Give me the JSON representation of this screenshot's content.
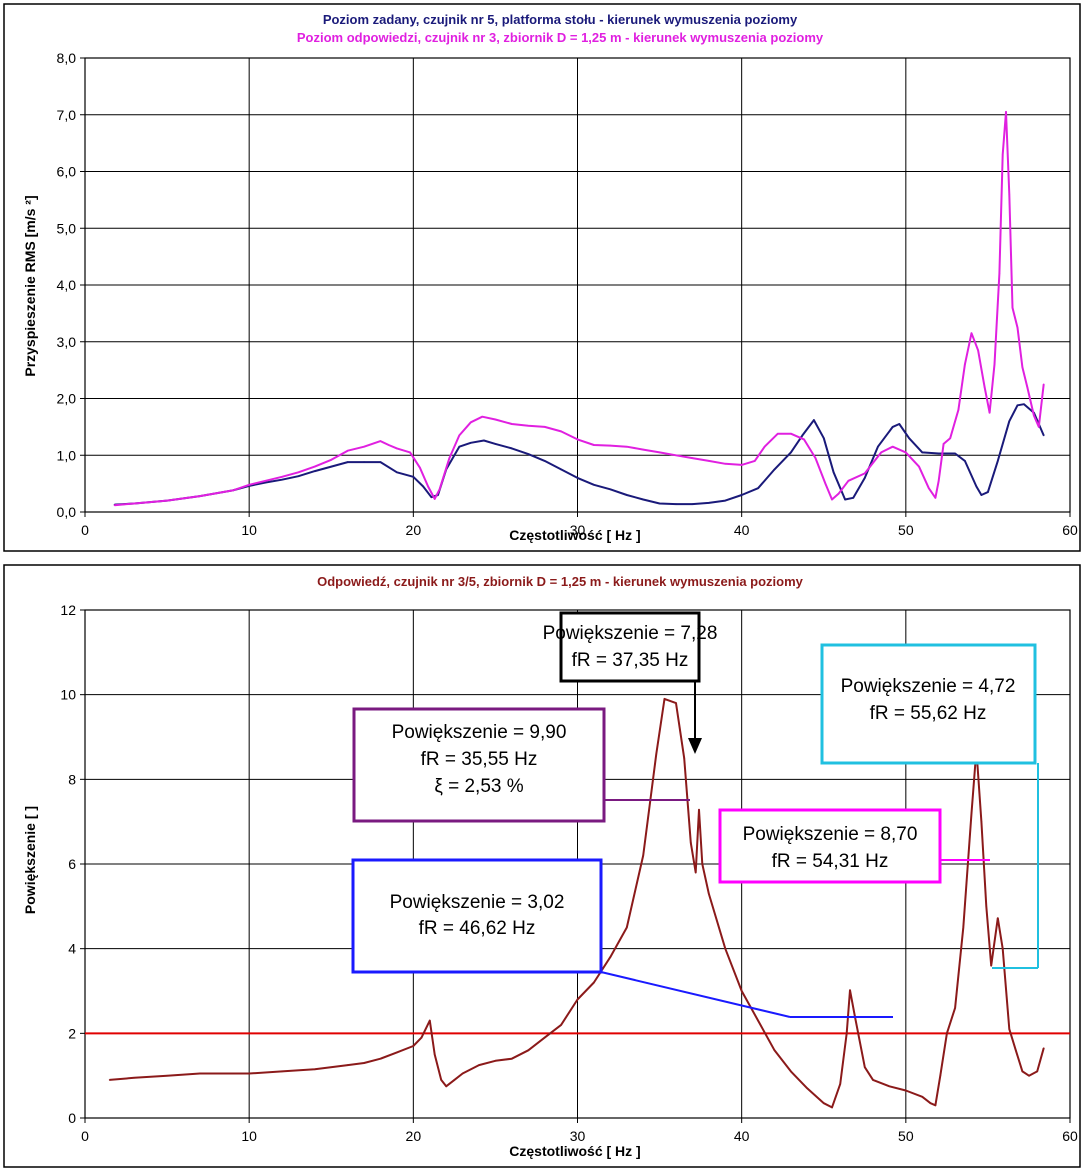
{
  "chart_data": [
    {
      "type": "line",
      "titles": [
        {
          "text": "Poziom zadany, czujnik nr 5, platforma stołu - kierunek wymuszenia poziomy",
          "color": "#1a1a7a"
        },
        {
          "text": "Poziom odpowiedzi, czujnik nr 3, zbiornik D = 1,25 m - kierunek wymuszenia poziomy",
          "color": "#e020e0"
        }
      ],
      "xlabel": "Częstotliwość [ Hz ]",
      "ylabel": "Przyspieszenie RMS [m/s  ²]",
      "xlim": [
        0,
        60
      ],
      "ylim": [
        0,
        8
      ],
      "x_ticks": [
        "0",
        "10",
        "20",
        "30",
        "40",
        "50",
        "60"
      ],
      "y_ticks": [
        "0,0",
        "1,0",
        "2,0",
        "3,0",
        "4,0",
        "5,0",
        "6,0",
        "7,0",
        "8,0"
      ],
      "grid": true,
      "series": [
        {
          "color": "#1a1a7a",
          "points": [
            [
              1.8,
              0.13
            ],
            [
              3,
              0.15
            ],
            [
              5,
              0.2
            ],
            [
              7,
              0.28
            ],
            [
              9,
              0.38
            ],
            [
              10,
              0.46
            ],
            [
              11,
              0.52
            ],
            [
              12,
              0.57
            ],
            [
              13,
              0.63
            ],
            [
              14,
              0.72
            ],
            [
              15,
              0.8
            ],
            [
              16,
              0.88
            ],
            [
              17,
              0.88
            ],
            [
              18,
              0.88
            ],
            [
              19,
              0.7
            ],
            [
              20,
              0.62
            ],
            [
              20.6,
              0.45
            ],
            [
              21.1,
              0.26
            ],
            [
              21.5,
              0.3
            ],
            [
              22,
              0.75
            ],
            [
              22.8,
              1.15
            ],
            [
              23.5,
              1.22
            ],
            [
              24.3,
              1.26
            ],
            [
              25,
              1.2
            ],
            [
              26,
              1.12
            ],
            [
              27,
              1.02
            ],
            [
              28,
              0.9
            ],
            [
              29,
              0.75
            ],
            [
              30,
              0.6
            ],
            [
              31,
              0.48
            ],
            [
              32,
              0.4
            ],
            [
              33,
              0.3
            ],
            [
              34,
              0.22
            ],
            [
              35,
              0.15
            ],
            [
              36,
              0.14
            ],
            [
              37,
              0.14
            ],
            [
              38,
              0.16
            ],
            [
              39,
              0.2
            ],
            [
              40,
              0.3
            ],
            [
              41,
              0.42
            ],
            [
              42,
              0.75
            ],
            [
              43,
              1.05
            ],
            [
              43.7,
              1.35
            ],
            [
              44.4,
              1.62
            ],
            [
              45,
              1.3
            ],
            [
              45.6,
              0.7
            ],
            [
              46.3,
              0.22
            ],
            [
              46.8,
              0.25
            ],
            [
              47.5,
              0.6
            ],
            [
              48.3,
              1.15
            ],
            [
              49.2,
              1.5
            ],
            [
              49.6,
              1.55
            ],
            [
              50.2,
              1.3
            ],
            [
              51,
              1.05
            ],
            [
              52,
              1.03
            ],
            [
              53,
              1.03
            ],
            [
              53.6,
              0.9
            ],
            [
              54.3,
              0.45
            ],
            [
              54.6,
              0.3
            ],
            [
              55,
              0.35
            ],
            [
              55.6,
              0.9
            ],
            [
              56.3,
              1.6
            ],
            [
              56.8,
              1.88
            ],
            [
              57.2,
              1.9
            ],
            [
              57.8,
              1.75
            ],
            [
              58.4,
              1.35
            ]
          ]
        },
        {
          "color": "#e020e0",
          "points": [
            [
              1.8,
              0.12
            ],
            [
              3,
              0.15
            ],
            [
              5,
              0.2
            ],
            [
              7,
              0.28
            ],
            [
              9,
              0.38
            ],
            [
              10,
              0.48
            ],
            [
              11,
              0.55
            ],
            [
              12,
              0.62
            ],
            [
              13,
              0.7
            ],
            [
              14,
              0.8
            ],
            [
              15,
              0.92
            ],
            [
              16,
              1.08
            ],
            [
              17,
              1.15
            ],
            [
              18,
              1.25
            ],
            [
              18.5,
              1.18
            ],
            [
              19,
              1.12
            ],
            [
              19.8,
              1.05
            ],
            [
              20.4,
              0.78
            ],
            [
              20.9,
              0.45
            ],
            [
              21.3,
              0.23
            ],
            [
              21.6,
              0.4
            ],
            [
              22.2,
              0.95
            ],
            [
              22.8,
              1.35
            ],
            [
              23.5,
              1.58
            ],
            [
              24.2,
              1.68
            ],
            [
              25,
              1.63
            ],
            [
              26,
              1.55
            ],
            [
              27,
              1.52
            ],
            [
              28,
              1.5
            ],
            [
              29,
              1.42
            ],
            [
              30,
              1.28
            ],
            [
              31,
              1.18
            ],
            [
              32,
              1.17
            ],
            [
              33,
              1.15
            ],
            [
              34,
              1.1
            ],
            [
              35,
              1.05
            ],
            [
              36,
              1.0
            ],
            [
              37,
              0.95
            ],
            [
              38,
              0.9
            ],
            [
              39,
              0.85
            ],
            [
              40,
              0.83
            ],
            [
              40.8,
              0.9
            ],
            [
              41.4,
              1.15
            ],
            [
              42.2,
              1.38
            ],
            [
              43,
              1.38
            ],
            [
              43.8,
              1.28
            ],
            [
              44.5,
              0.95
            ],
            [
              45.1,
              0.5
            ],
            [
              45.5,
              0.22
            ],
            [
              45.9,
              0.32
            ],
            [
              46.5,
              0.55
            ],
            [
              47.5,
              0.68
            ],
            [
              48.5,
              1.05
            ],
            [
              49.2,
              1.15
            ],
            [
              50,
              1.05
            ],
            [
              50.8,
              0.8
            ],
            [
              51.4,
              0.42
            ],
            [
              51.8,
              0.25
            ],
            [
              52,
              0.55
            ],
            [
              52.3,
              1.2
            ],
            [
              52.7,
              1.3
            ],
            [
              53.2,
              1.8
            ],
            [
              53.6,
              2.6
            ],
            [
              54,
              3.15
            ],
            [
              54.4,
              2.85
            ],
            [
              54.8,
              2.2
            ],
            [
              55.1,
              1.75
            ],
            [
              55.4,
              2.6
            ],
            [
              55.7,
              4.2
            ],
            [
              55.9,
              6.3
            ],
            [
              56.1,
              7.05
            ],
            [
              56.3,
              5.6
            ],
            [
              56.5,
              3.6
            ],
            [
              56.8,
              3.25
            ],
            [
              57.1,
              2.55
            ],
            [
              57.4,
              2.2
            ],
            [
              57.8,
              1.7
            ],
            [
              58.1,
              1.5
            ],
            [
              58.4,
              2.25
            ]
          ]
        }
      ]
    },
    {
      "type": "line",
      "titles": [
        {
          "text": "Odpowiedź, czujnik nr 3/5, zbiornik D = 1,25 m - kierunek wymuszenia poziomy",
          "color": "#8b1a1a"
        }
      ],
      "xlabel": "Częstotliwość [ Hz ]",
      "ylabel": "Powiększenie [ ]",
      "xlim": [
        0,
        60
      ],
      "ylim": [
        0,
        12
      ],
      "x_ticks": [
        "0",
        "10",
        "20",
        "30",
        "40",
        "50",
        "60"
      ],
      "y_ticks": [
        "0",
        "2",
        "4",
        "6",
        "8",
        "10",
        "12"
      ],
      "grid": true,
      "reference_line": {
        "y": 2,
        "color": "#e00000"
      },
      "series": [
        {
          "color": "#8b1a1a",
          "points": [
            [
              1.5,
              0.9
            ],
            [
              3,
              0.95
            ],
            [
              5,
              1.0
            ],
            [
              7,
              1.05
            ],
            [
              9,
              1.05
            ],
            [
              10,
              1.05
            ],
            [
              12,
              1.1
            ],
            [
              14,
              1.15
            ],
            [
              16,
              1.25
            ],
            [
              17,
              1.3
            ],
            [
              18,
              1.4
            ],
            [
              19,
              1.55
            ],
            [
              20,
              1.7
            ],
            [
              20.5,
              1.9
            ],
            [
              21,
              2.3
            ],
            [
              21.3,
              1.5
            ],
            [
              21.7,
              0.9
            ],
            [
              22,
              0.75
            ],
            [
              22.5,
              0.9
            ],
            [
              23,
              1.05
            ],
            [
              24,
              1.25
            ],
            [
              25,
              1.35
            ],
            [
              26,
              1.4
            ],
            [
              27,
              1.6
            ],
            [
              28,
              1.9
            ],
            [
              29,
              2.2
            ],
            [
              30,
              2.8
            ],
            [
              31,
              3.2
            ],
            [
              32,
              3.8
            ],
            [
              33,
              4.5
            ],
            [
              34,
              6.2
            ],
            [
              34.8,
              8.6
            ],
            [
              35.3,
              9.9
            ],
            [
              36,
              9.8
            ],
            [
              36.5,
              8.5
            ],
            [
              36.9,
              6.5
            ],
            [
              37.2,
              5.8
            ],
            [
              37.4,
              7.28
            ],
            [
              37.6,
              6.0
            ],
            [
              38,
              5.3
            ],
            [
              39,
              4.0
            ],
            [
              40,
              3.0
            ],
            [
              41,
              2.3
            ],
            [
              42,
              1.6
            ],
            [
              43,
              1.1
            ],
            [
              44,
              0.7
            ],
            [
              45,
              0.35
            ],
            [
              45.5,
              0.25
            ],
            [
              46,
              0.8
            ],
            [
              46.4,
              2.0
            ],
            [
              46.6,
              3.02
            ],
            [
              46.9,
              2.4
            ],
            [
              47.5,
              1.2
            ],
            [
              48,
              0.9
            ],
            [
              49,
              0.75
            ],
            [
              50,
              0.65
            ],
            [
              51,
              0.5
            ],
            [
              51.5,
              0.35
            ],
            [
              51.8,
              0.3
            ],
            [
              52.1,
              1.0
            ],
            [
              52.5,
              2.0
            ],
            [
              53,
              2.6
            ],
            [
              53.5,
              4.5
            ],
            [
              54,
              7.2
            ],
            [
              54.3,
              8.7
            ],
            [
              54.6,
              7.0
            ],
            [
              54.9,
              5.0
            ],
            [
              55.2,
              3.6
            ],
            [
              55.6,
              4.72
            ],
            [
              55.9,
              4.0
            ],
            [
              56.3,
              2.1
            ],
            [
              56.7,
              1.6
            ],
            [
              57.1,
              1.1
            ],
            [
              57.5,
              1.0
            ],
            [
              58,
              1.1
            ],
            [
              58.4,
              1.65
            ]
          ]
        }
      ],
      "annotations": [
        {
          "id": "ann1",
          "lines": [
            "Powiększenie = 7,28",
            "fR = 37,35 Hz"
          ],
          "border": "#000000"
        },
        {
          "id": "ann2",
          "lines": [
            "Powiększenie = 9,90",
            "fR = 35,55 Hz",
            "ξ = 2,53 %"
          ],
          "border": "#7a1a80"
        },
        {
          "id": "ann3",
          "lines": [
            "Powiększenie = 3,02",
            "fR = 46,62 Hz"
          ],
          "border": "#1a1aff"
        },
        {
          "id": "ann4",
          "lines": [
            "Powiększenie = 8,70",
            "fR = 54,31 Hz"
          ],
          "border": "#ff00ff"
        },
        {
          "id": "ann5",
          "lines": [
            "Powiększenie = 4,72",
            "fR = 55,62 Hz"
          ],
          "border": "#20c0e0"
        }
      ]
    }
  ]
}
